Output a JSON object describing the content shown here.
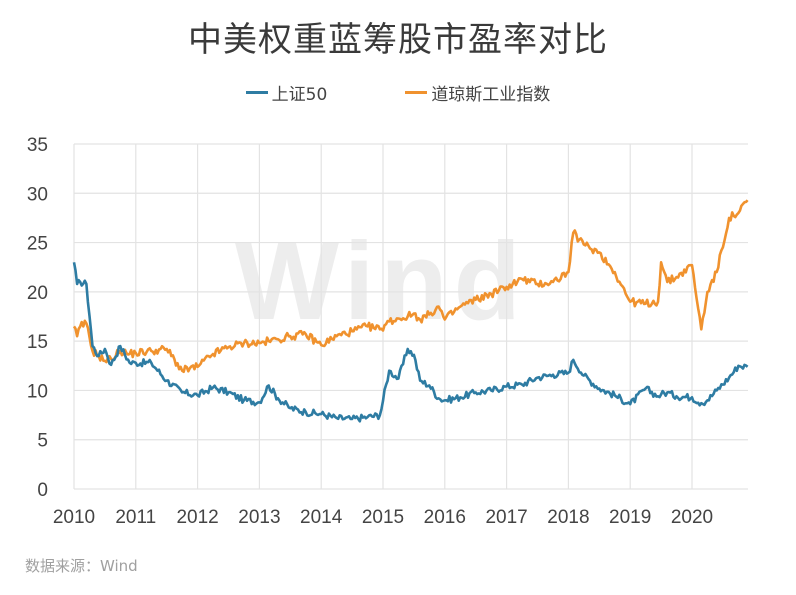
{
  "header": {
    "title": "中美权重蓝筹股市盈率对比"
  },
  "legend": [
    {
      "label": "上证50",
      "color": "#2e7ca3"
    },
    {
      "label": "道琼斯工业指数",
      "color": "#f0922e"
    }
  ],
  "footer": {
    "source": "数据来源：Wind"
  },
  "watermark": "Wind",
  "colors": {
    "grid": "#e3e3e3",
    "axis_text": "#444444",
    "sse50": "#2e7ca3",
    "dow": "#f0922e"
  },
  "chart_data": {
    "type": "line",
    "title": "中美权重蓝筹股市盈率对比",
    "xlabel": "",
    "ylabel": "",
    "ylim": [
      0,
      35
    ],
    "yticks": [
      0,
      5,
      10,
      15,
      20,
      25,
      30,
      35
    ],
    "xlim": [
      2010.0,
      2020.9
    ],
    "xticks": [
      "2010",
      "2011",
      "2012",
      "2013",
      "2014",
      "2015",
      "2016",
      "2017",
      "2018",
      "2019",
      "2020"
    ],
    "grid": true,
    "legend_position": "top",
    "x": [
      2010.0,
      2010.05,
      2010.1,
      2010.2,
      2010.3,
      2010.4,
      2010.5,
      2010.6,
      2010.75,
      2010.9,
      2011.0,
      2011.25,
      2011.5,
      2011.75,
      2012.0,
      2012.25,
      2012.5,
      2012.75,
      2013.0,
      2013.15,
      2013.3,
      2013.5,
      2013.75,
      2014.0,
      2014.25,
      2014.5,
      2014.75,
      2014.95,
      2015.1,
      2015.25,
      2015.4,
      2015.5,
      2015.6,
      2015.75,
      2015.9,
      2016.0,
      2016.25,
      2016.5,
      2016.75,
      2017.0,
      2017.25,
      2017.5,
      2017.75,
      2018.0,
      2018.08,
      2018.25,
      2018.5,
      2018.75,
      2019.0,
      2019.25,
      2019.45,
      2019.5,
      2019.6,
      2019.75,
      2020.0,
      2020.15,
      2020.25,
      2020.4,
      2020.6,
      2020.75,
      2020.9
    ],
    "series": [
      {
        "name": "上证50",
        "values": [
          23.0,
          20.8,
          21.0,
          20.8,
          14.5,
          13.5,
          14.2,
          12.6,
          14.5,
          12.8,
          12.8,
          12.8,
          11.0,
          9.8,
          9.5,
          10.3,
          9.8,
          9.0,
          8.8,
          10.5,
          9.2,
          8.2,
          7.8,
          7.6,
          7.2,
          7.1,
          7.3,
          7.5,
          12.0,
          11.2,
          14.2,
          13.6,
          11.0,
          10.5,
          9.2,
          9.0,
          9.3,
          9.8,
          10.0,
          10.4,
          10.6,
          11.3,
          11.6,
          11.8,
          13.1,
          11.5,
          10.2,
          9.5,
          8.6,
          10.2,
          9.4,
          9.6,
          9.8,
          9.4,
          9.3,
          8.7,
          9.0,
          10.0,
          11.3,
          12.5,
          12.4
        ]
      },
      {
        "name": "道琼斯工业指数",
        "values": [
          16.5,
          15.5,
          16.5,
          16.8,
          14.0,
          13.5,
          13.0,
          13.2,
          14.0,
          13.7,
          13.8,
          14.0,
          14.2,
          12.0,
          12.4,
          13.7,
          14.4,
          14.8,
          14.8,
          15.0,
          15.2,
          15.5,
          15.7,
          14.6,
          15.5,
          16.0,
          16.5,
          16.2,
          17.0,
          17.3,
          17.5,
          17.8,
          17.2,
          17.7,
          18.5,
          17.2,
          18.5,
          19.2,
          19.8,
          20.5,
          21.3,
          20.8,
          21.0,
          22.0,
          26.0,
          24.8,
          24.0,
          22.0,
          19.0,
          18.8,
          19.0,
          23.0,
          21.0,
          21.5,
          22.7,
          16.2,
          20.0,
          22.0,
          27.5,
          28.0,
          29.3
        ]
      }
    ]
  }
}
